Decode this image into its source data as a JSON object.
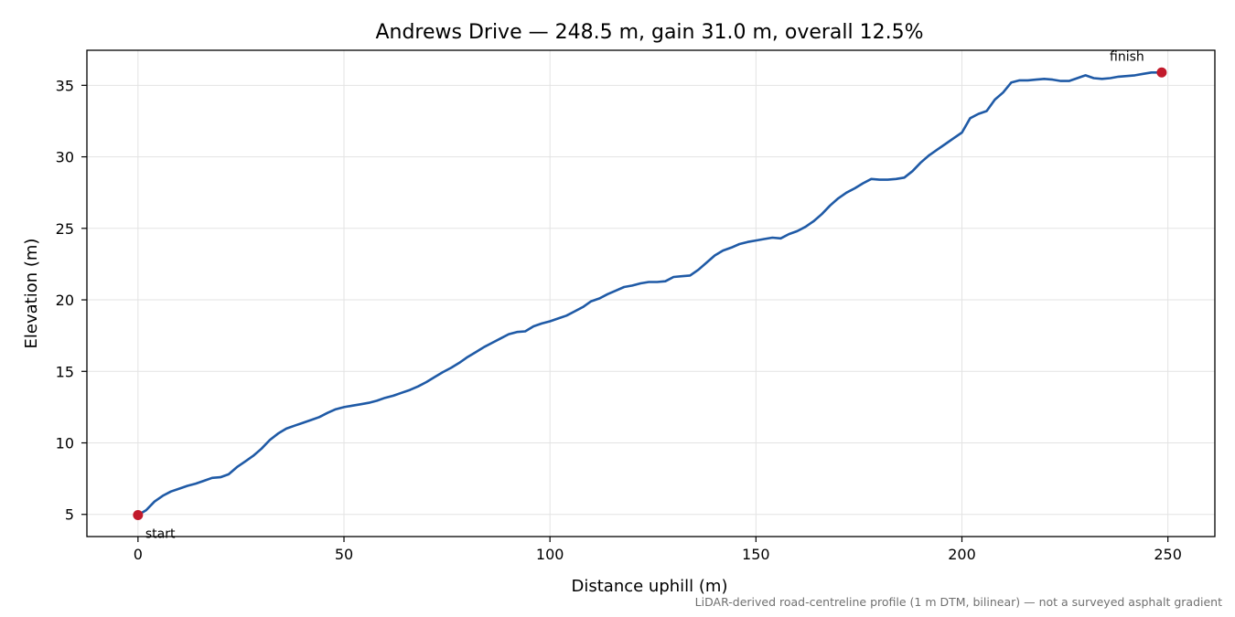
{
  "chart_data": {
    "type": "line",
    "title": "Andrews Drive — 248.5 m, gain 31.0 m, overall 12.5%",
    "xlabel": "Distance uphill (m)",
    "ylabel": "Elevation (m)",
    "xlim": [
      -12.4,
      261.4
    ],
    "ylim": [
      3.45,
      37.45
    ],
    "xticks": [
      0,
      50,
      100,
      150,
      200,
      250
    ],
    "yticks": [
      5,
      10,
      15,
      20,
      25,
      30,
      35
    ],
    "grid": true,
    "line_color": "#1f5aa6",
    "marker_color": "#c21a2b",
    "series": [
      {
        "x": [
          0,
          2,
          4,
          6,
          8,
          10,
          12,
          14,
          16,
          18,
          20,
          22,
          24,
          26,
          28,
          30,
          32,
          34,
          36,
          38,
          40,
          42,
          44,
          46,
          48,
          50,
          52,
          54,
          56,
          58,
          60,
          62,
          64,
          66,
          68,
          70,
          72,
          74,
          76,
          78,
          80,
          82,
          84,
          86,
          88,
          90,
          92,
          94,
          96,
          98,
          100,
          102,
          104,
          106,
          108,
          110,
          112,
          114,
          116,
          118,
          120,
          122,
          124,
          126,
          128,
          130,
          132,
          134,
          136,
          138,
          140,
          142,
          144,
          146,
          148,
          150,
          152,
          154,
          156,
          158,
          160,
          162,
          164,
          166,
          168,
          170,
          172,
          174,
          176,
          178,
          180,
          182,
          184,
          186,
          188,
          190,
          192,
          194,
          196,
          198,
          200,
          202,
          204,
          206,
          208,
          210,
          212,
          214,
          216,
          218,
          220,
          222,
          224,
          226,
          228,
          230,
          232,
          234,
          236,
          238,
          240,
          242,
          244,
          246,
          248.5
        ],
        "y": [
          4.95,
          5.3,
          5.9,
          6.3,
          6.6,
          6.8,
          7.0,
          7.15,
          7.35,
          7.55,
          7.6,
          7.8,
          8.3,
          8.7,
          9.1,
          9.6,
          10.2,
          10.65,
          11.0,
          11.2,
          11.4,
          11.6,
          11.8,
          12.1,
          12.35,
          12.5,
          12.6,
          12.7,
          12.8,
          12.95,
          13.15,
          13.3,
          13.5,
          13.7,
          13.95,
          14.25,
          14.6,
          14.95,
          15.25,
          15.6,
          16.0,
          16.35,
          16.7,
          17.0,
          17.3,
          17.6,
          17.75,
          17.8,
          18.15,
          18.35,
          18.5,
          18.7,
          18.9,
          19.2,
          19.5,
          19.9,
          20.1,
          20.4,
          20.65,
          20.9,
          21.0,
          21.15,
          21.25,
          21.25,
          21.3,
          21.6,
          21.65,
          21.7,
          22.1,
          22.6,
          23.1,
          23.45,
          23.65,
          23.9,
          24.05,
          24.15,
          24.25,
          24.35,
          24.3,
          24.6,
          24.8,
          25.1,
          25.5,
          26.0,
          26.6,
          27.1,
          27.5,
          27.8,
          28.15,
          28.45,
          28.4,
          28.4,
          28.45,
          28.55,
          29.0,
          29.6,
          30.1,
          30.5,
          30.9,
          31.3,
          31.7,
          32.7,
          33.0,
          33.2,
          34.0,
          34.5,
          35.2,
          35.35,
          35.35,
          35.4,
          35.45,
          35.4,
          35.3,
          35.3,
          35.5,
          35.7,
          35.5,
          35.45,
          35.5,
          35.6,
          35.65,
          35.7,
          35.8,
          35.9,
          35.9
        ]
      }
    ],
    "annotations": [
      {
        "text": "start",
        "x": 0,
        "y": 4.95
      },
      {
        "text": "finish",
        "x": 248.5,
        "y": 35.9
      }
    ],
    "footnote": "LiDAR-derived road-centreline profile (1 m DTM, bilinear) — not a surveyed asphalt gradient"
  }
}
